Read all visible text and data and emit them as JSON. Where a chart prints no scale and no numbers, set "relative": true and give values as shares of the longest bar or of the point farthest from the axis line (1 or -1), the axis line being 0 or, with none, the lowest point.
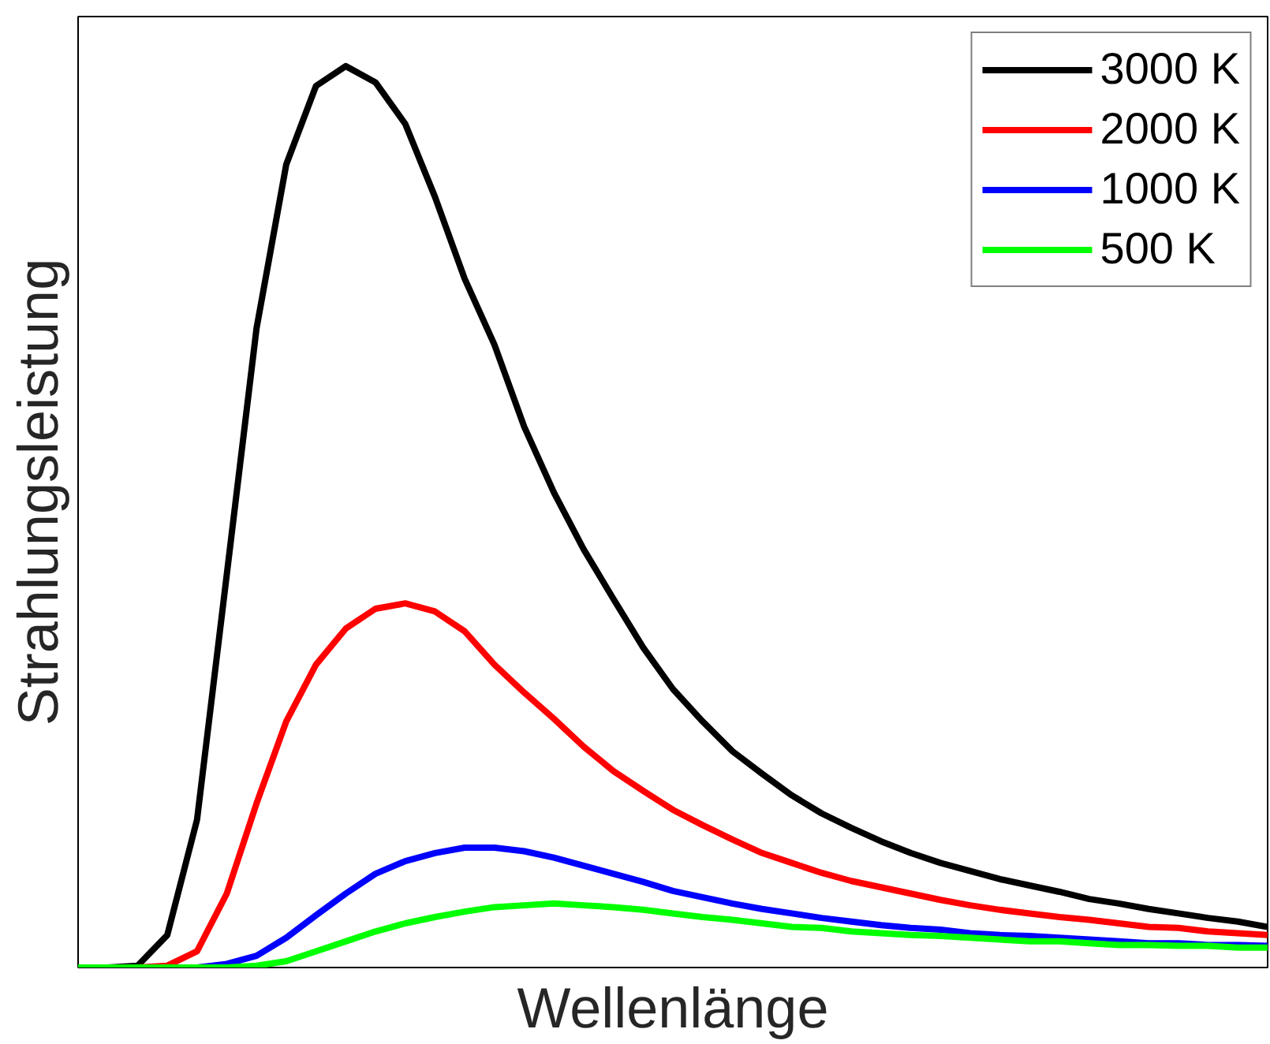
{
  "chart_data": {
    "type": "line",
    "relative": true,
    "xlabel": "Wellenlänge",
    "ylabel": "Strahlungsleistung",
    "legend": "top right",
    "categories": [
      null,
      null,
      null,
      null,
      null,
      null,
      null,
      null,
      null,
      null,
      null,
      null,
      null,
      null,
      null,
      null,
      null,
      null,
      null,
      null,
      null,
      null,
      null,
      null,
      null,
      null,
      null,
      null,
      null,
      null,
      null,
      null,
      null,
      null,
      null,
      null,
      null,
      null,
      null,
      null,
      null
    ],
    "series": [
      {
        "name": "3000 K",
        "color": "#000000",
        "values": [
          0,
          0,
          0.002,
          0.036,
          0.164,
          0.436,
          0.709,
          0.891,
          0.978,
          1.0,
          0.982,
          0.936,
          0.855,
          0.764,
          0.691,
          0.6,
          0.527,
          0.464,
          0.409,
          0.355,
          0.309,
          0.273,
          0.24,
          0.215,
          0.191,
          0.171,
          0.155,
          0.14,
          0.127,
          0.116,
          0.107,
          0.098,
          0.091,
          0.084,
          0.076,
          0.071,
          0.065,
          0.06,
          0.055,
          0.051,
          0.045
        ]
      },
      {
        "name": "2000 K",
        "color": "#ff0000",
        "values": [
          0,
          0,
          0,
          0.002,
          0.018,
          0.082,
          0.182,
          0.273,
          0.336,
          0.376,
          0.398,
          0.404,
          0.395,
          0.373,
          0.336,
          0.305,
          0.276,
          0.245,
          0.218,
          0.196,
          0.175,
          0.158,
          0.142,
          0.127,
          0.116,
          0.105,
          0.096,
          0.089,
          0.082,
          0.075,
          0.069,
          0.064,
          0.06,
          0.056,
          0.053,
          0.049,
          0.045,
          0.044,
          0.04,
          0.038,
          0.036
        ]
      },
      {
        "name": "1000 K",
        "color": "#0000ff",
        "values": [
          null,
          null,
          null,
          0,
          0,
          0.004,
          0.013,
          0.033,
          0.058,
          0.082,
          0.104,
          0.118,
          0.127,
          0.133,
          0.133,
          0.129,
          0.122,
          0.113,
          0.104,
          0.095,
          0.085,
          0.078,
          0.071,
          0.065,
          0.06,
          0.055,
          0.051,
          0.047,
          0.044,
          0.042,
          0.038,
          0.036,
          0.035,
          0.033,
          0.031,
          0.029,
          0.027,
          0.027,
          0.025,
          0.025,
          0.024
        ]
      },
      {
        "name": "500 K",
        "color": "#00ff00",
        "values": [
          0,
          0,
          0,
          0,
          0,
          0,
          0.002,
          0.007,
          0.018,
          0.029,
          0.04,
          0.049,
          0.056,
          0.062,
          0.067,
          0.069,
          0.071,
          0.069,
          0.067,
          0.064,
          0.06,
          0.056,
          0.053,
          0.049,
          0.045,
          0.044,
          0.04,
          0.038,
          0.036,
          0.035,
          0.033,
          0.031,
          0.029,
          0.029,
          0.027,
          0.025,
          0.025,
          0.024,
          0.024,
          0.022,
          0.022
        ]
      }
    ]
  }
}
